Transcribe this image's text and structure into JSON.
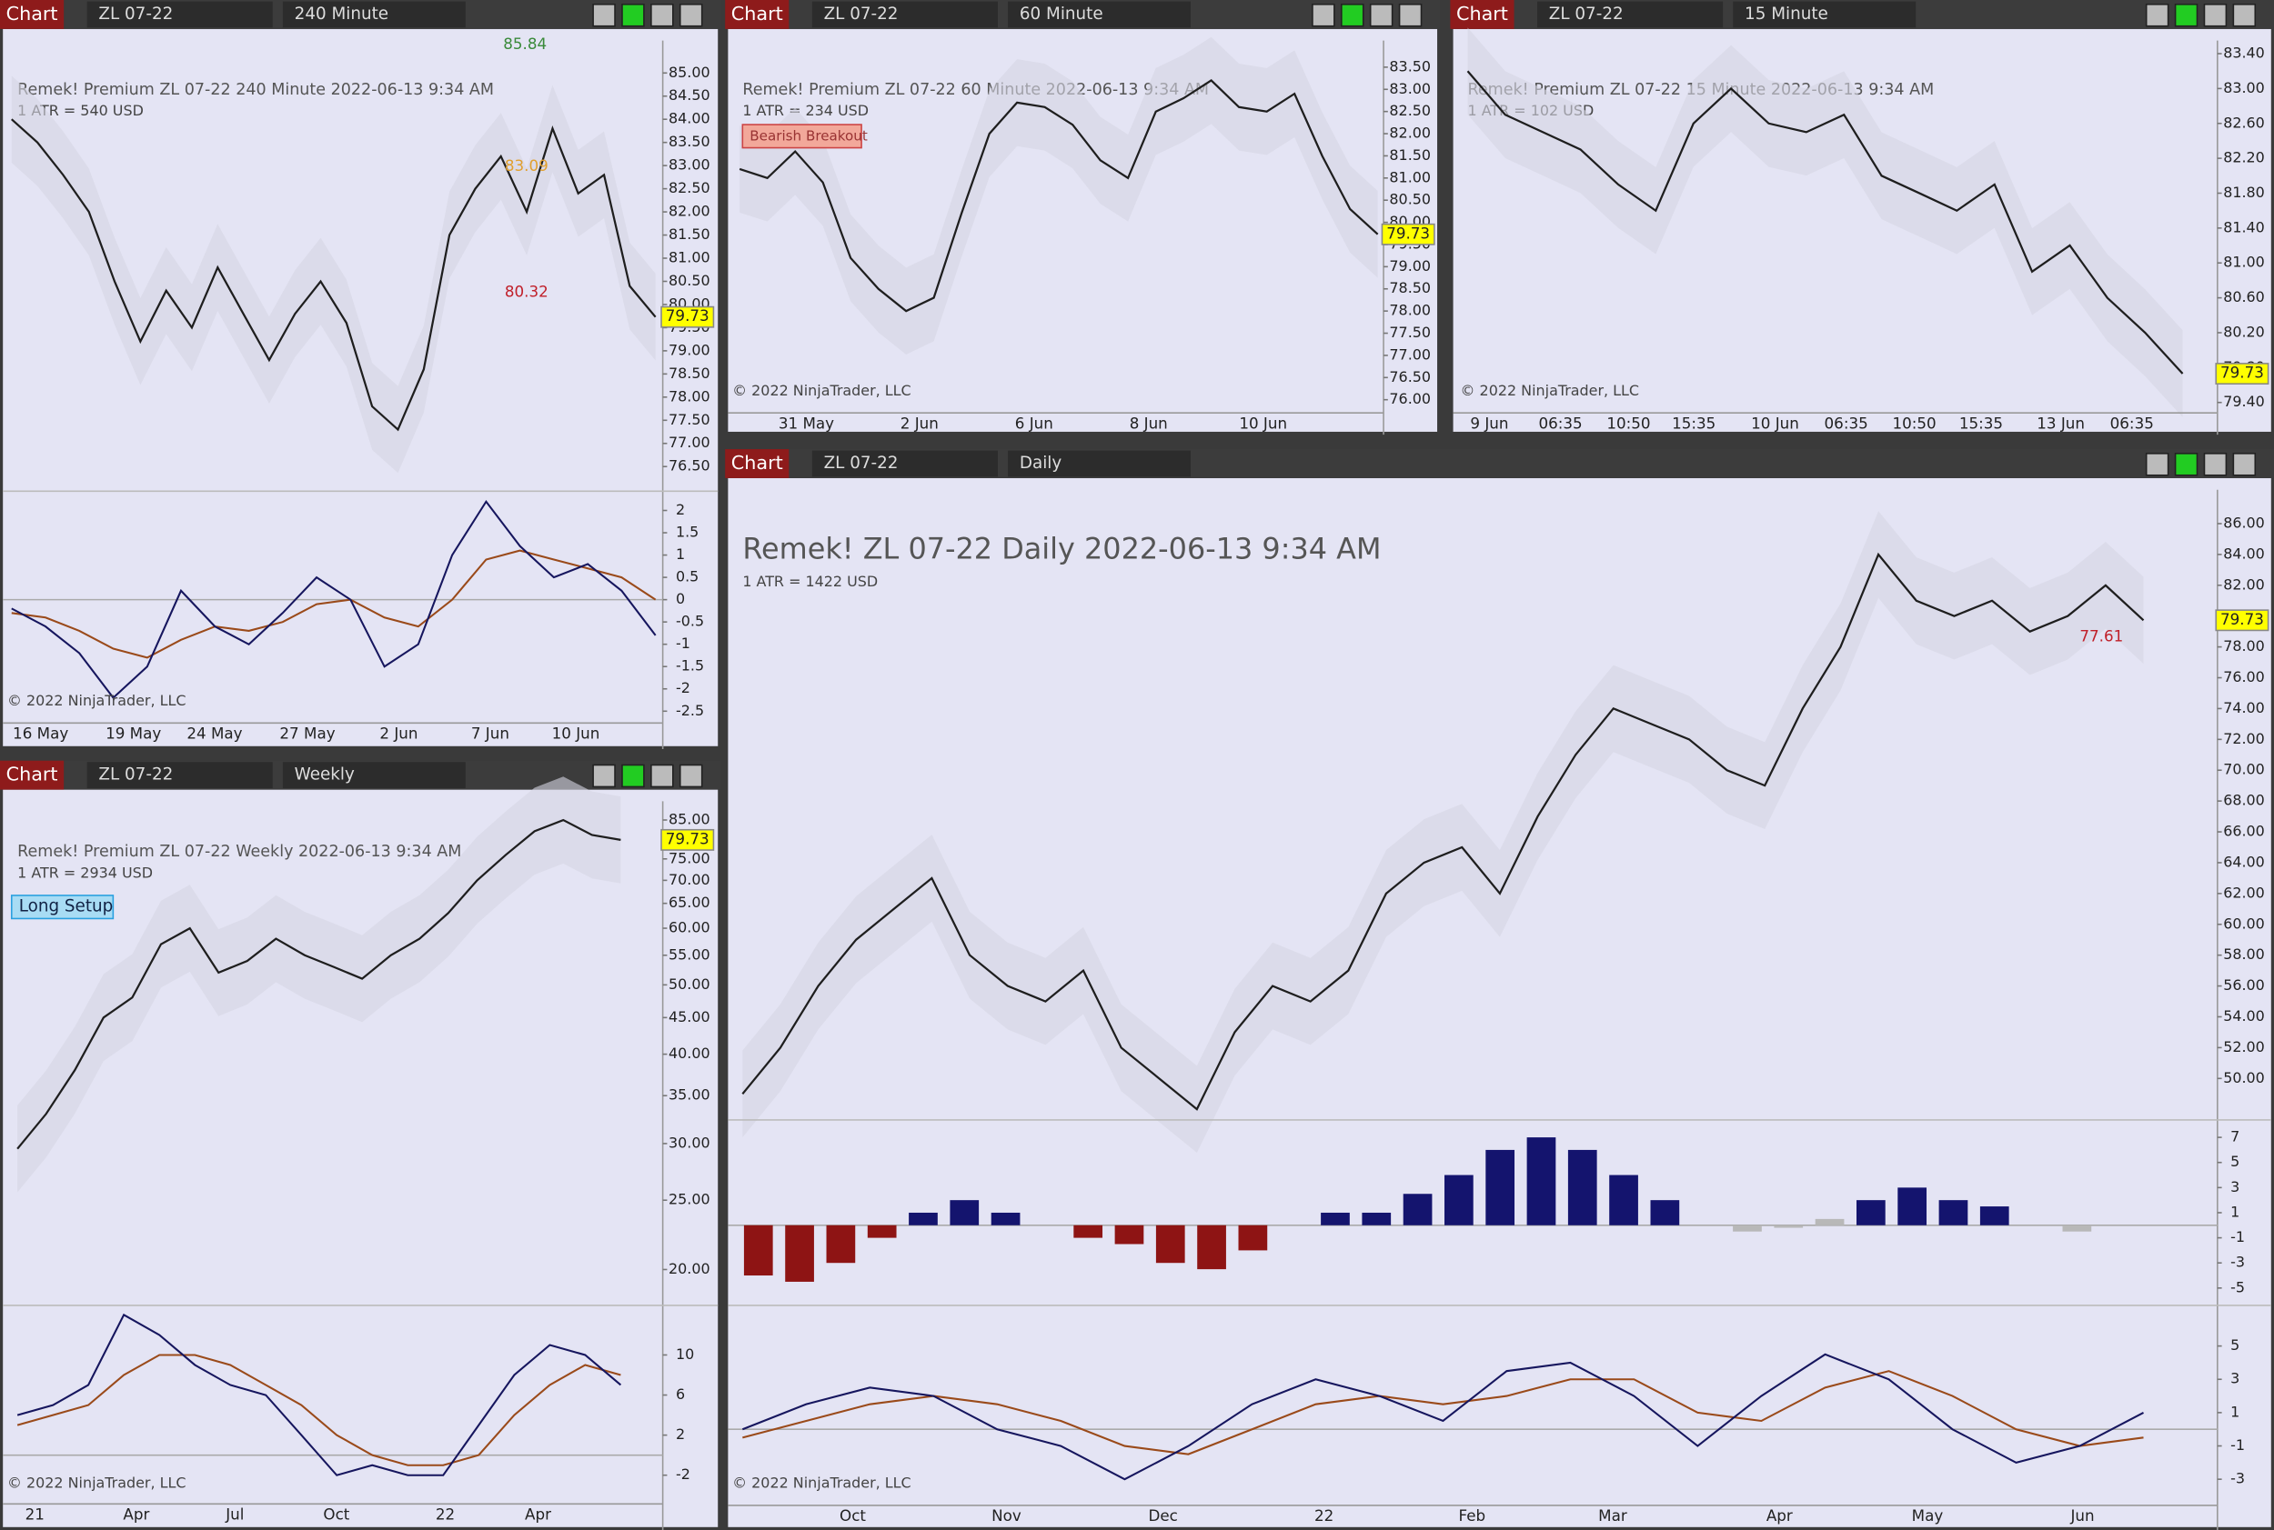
{
  "panels": [
    {
      "button": "Chart",
      "symbol": "ZL 07-22",
      "interval": "240 Minute",
      "title": "Remek!  Premium  ZL 07-22  240 Minute  2022-06-13 9:34 AM",
      "atr": "1 ATR = 540 USD",
      "copyright": "© 2022 NinjaTrader, LLC",
      "price_label": "79.73",
      "annotations": [
        "85.84",
        "83.09",
        "80.32"
      ],
      "ylim": [
        76,
        85.7
      ],
      "log": false,
      "yticks": [
        {
          "value": 85,
          "label": "85.00"
        },
        {
          "value": 84.5,
          "label": "84.50"
        },
        {
          "value": 84,
          "label": "84.00"
        },
        {
          "value": 83.5,
          "label": "83.50"
        },
        {
          "value": 83,
          "label": "83.00"
        },
        {
          "value": 82.5,
          "label": "82.50"
        },
        {
          "value": 82,
          "label": "82.00"
        },
        {
          "value": 81.5,
          "label": "81.50"
        },
        {
          "value": 81,
          "label": "81.00"
        },
        {
          "value": 80.5,
          "label": "80.50"
        },
        {
          "value": 80,
          "label": "80.00"
        },
        {
          "value": 79.5,
          "label": "79.50"
        },
        {
          "value": 79,
          "label": "79.00"
        },
        {
          "value": 78.5,
          "label": "78.50"
        },
        {
          "value": 78,
          "label": "78.00"
        },
        {
          "value": 77.5,
          "label": "77.50"
        },
        {
          "value": 77,
          "label": "77.00"
        },
        {
          "value": 76.5,
          "label": "76.50"
        }
      ],
      "xlabels": [
        "16 May",
        "19 May",
        "24 May",
        "27 May",
        "2 Jun",
        "7 Jun",
        "10 Jun"
      ],
      "closes": [
        84,
        83.5,
        82.8,
        82,
        80.5,
        79.2,
        80.3,
        79.5,
        80.8,
        79.8,
        78.8,
        79.8,
        80.5,
        79.6,
        77.8,
        77.3,
        78.6,
        81.5,
        82.5,
        83.2,
        82,
        83.8,
        82.4,
        82.8,
        80.4,
        79.73
      ],
      "osc": [
        {
          "ylim": [
            -2.7,
            2.4
          ],
          "yticks": [
            2,
            1.5,
            1,
            0.5,
            0,
            -0.5,
            -1,
            -1.5,
            -2,
            -2.5
          ],
          "fast": [
            -0.2,
            -0.6,
            -1.2,
            -2.2,
            -1.5,
            0.2,
            -0.6,
            -1,
            -0.3,
            0.5,
            0,
            -1.5,
            -1,
            1,
            2.2,
            1.2,
            0.5,
            0.8,
            0.2,
            -0.8
          ],
          "slow": [
            -0.3,
            -0.4,
            -0.7,
            -1.1,
            -1.3,
            -0.9,
            -0.6,
            -0.7,
            -0.5,
            -0.1,
            0,
            -0.4,
            -0.6,
            0,
            0.9,
            1.1,
            0.9,
            0.7,
            0.5,
            0
          ]
        }
      ]
    },
    {
      "button": "Chart",
      "symbol": "ZL 07-22",
      "interval": "60 Minute",
      "title": "Remek!  Premium  ZL 07-22  60 Minute  2022-06-13 9:34 AM",
      "atr": "1 ATR = 234 USD",
      "copyright": "© 2022 NinjaTrader, LLC",
      "price_label": "79.73",
      "annotations": [
        "Bearish Breakout"
      ],
      "ylim": [
        75.8,
        84.1
      ],
      "log": false,
      "yticks": [
        {
          "value": 83.5,
          "label": "83.50"
        },
        {
          "value": 83,
          "label": "83.00"
        },
        {
          "value": 82.5,
          "label": "82.50"
        },
        {
          "value": 82,
          "label": "82.00"
        },
        {
          "value": 81.5,
          "label": "81.50"
        },
        {
          "value": 81,
          "label": "81.00"
        },
        {
          "value": 80.5,
          "label": "80.50"
        },
        {
          "value": 80,
          "label": "80.00"
        },
        {
          "value": 79.5,
          "label": "79.50"
        },
        {
          "value": 79,
          "label": "79.00"
        },
        {
          "value": 78.5,
          "label": "78.50"
        },
        {
          "value": 78,
          "label": "78.00"
        },
        {
          "value": 77.5,
          "label": "77.50"
        },
        {
          "value": 77,
          "label": "77.00"
        },
        {
          "value": 76.5,
          "label": "76.50"
        },
        {
          "value": 76,
          "label": "76.00"
        }
      ],
      "xlabels": [
        "31 May",
        "2 Jun",
        "6 Jun",
        "8 Jun",
        "10 Jun"
      ],
      "closes": [
        81.2,
        81,
        81.6,
        80.9,
        79.2,
        78.5,
        78,
        78.3,
        80.2,
        82,
        82.7,
        82.6,
        82.2,
        81.4,
        81,
        82.5,
        82.8,
        83.2,
        82.6,
        82.5,
        82.9,
        81.5,
        80.3,
        79.73
      ]
    },
    {
      "button": "Chart",
      "symbol": "ZL 07-22",
      "interval": "15 Minute",
      "title": "Remek!  Premium  ZL 07-22  15 Minute  2022-06-13 9:34 AM",
      "atr": "1 ATR = 102 USD",
      "copyright": "© 2022 NinjaTrader, LLC",
      "price_label": "79.73",
      "annotations": [],
      "ylim": [
        79.33,
        83.55
      ],
      "log": false,
      "yticks": [
        {
          "value": 83.4,
          "label": "83.40"
        },
        {
          "value": 83,
          "label": "83.00"
        },
        {
          "value": 82.6,
          "label": "82.60"
        },
        {
          "value": 82.2,
          "label": "82.20"
        },
        {
          "value": 81.8,
          "label": "81.80"
        },
        {
          "value": 81.4,
          "label": "81.40"
        },
        {
          "value": 81,
          "label": "81.00"
        },
        {
          "value": 80.6,
          "label": "80.60"
        },
        {
          "value": 80.2,
          "label": "80.20"
        },
        {
          "value": 79.8,
          "label": "79.80"
        },
        {
          "value": 79.4,
          "label": "79.40"
        }
      ],
      "xlabels": [
        "9 Jun",
        "06:35",
        "10:50",
        "15:35",
        "10 Jun",
        "06:35",
        "10:50",
        "15:35",
        "13 Jun",
        "06:35"
      ],
      "closes": [
        83.2,
        82.7,
        82.5,
        82.3,
        81.9,
        81.6,
        82.6,
        83,
        82.6,
        82.5,
        82.7,
        82,
        81.8,
        81.6,
        81.9,
        80.9,
        81.2,
        80.6,
        80.2,
        79.73
      ]
    },
    {
      "button": "Chart",
      "symbol": "ZL 07-22",
      "interval": "Weekly",
      "title": "Remek!  Premium  ZL 07-22  Weekly  2022-06-13 9:34 AM",
      "atr": "1 ATR = 2934 USD",
      "copyright": "© 2022 NinjaTrader, LLC",
      "price_label": "79.73",
      "annotations": [
        "Long Setup"
      ],
      "ylim": [
        17.9,
        90.3
      ],
      "log": true,
      "yticks": [
        {
          "value": 85,
          "label": "85.00"
        },
        {
          "value": 80,
          "label": "80.00"
        },
        {
          "value": 75,
          "label": "75.00"
        },
        {
          "value": 70,
          "label": "70.00"
        },
        {
          "value": 65,
          "label": "65.00"
        },
        {
          "value": 60,
          "label": "60.00"
        },
        {
          "value": 55,
          "label": "55.00"
        },
        {
          "value": 50,
          "label": "50.00"
        },
        {
          "value": 45,
          "label": "45.00"
        },
        {
          "value": 40,
          "label": "40.00"
        },
        {
          "value": 35,
          "label": "35.00"
        },
        {
          "value": 30,
          "label": "30.00"
        },
        {
          "value": 25,
          "label": "25.00"
        },
        {
          "value": 20,
          "label": "20.00"
        }
      ],
      "xlabels": [
        "21",
        "Apr",
        "Jul",
        "Oct",
        "22",
        "Apr"
      ],
      "closes": [
        29.5,
        33,
        38,
        45,
        48,
        57,
        60,
        52,
        54,
        58,
        55,
        53,
        51,
        55,
        58,
        63,
        70,
        76,
        82,
        85,
        81,
        79.73
      ],
      "osc": [
        {
          "ylim": [
            -4,
            14.8
          ],
          "yticks": [
            10,
            6,
            2,
            -2
          ],
          "fast": [
            4,
            5,
            7,
            14,
            12,
            9,
            7,
            6,
            2,
            -2,
            -1,
            -2,
            -2,
            3,
            8,
            11,
            10,
            7
          ],
          "slow": [
            3,
            4,
            5,
            8,
            10,
            10,
            9,
            7,
            5,
            2,
            0,
            -1,
            -1,
            0,
            4,
            7,
            9,
            8
          ]
        }
      ]
    },
    {
      "button": "Chart",
      "symbol": "ZL 07-22",
      "interval": "Daily",
      "title": "Remek!  ZL 07-22  Daily  2022-06-13 9:34 AM",
      "atr": "1 ATR = 1422 USD",
      "copyright": "© 2022 NinjaTrader, LLC",
      "price_label": "79.73",
      "annotations": [
        "77.61"
      ],
      "ylim": [
        47.4,
        88.2
      ],
      "log": false,
      "yticks": [
        {
          "value": 86,
          "label": "86.00"
        },
        {
          "value": 84,
          "label": "84.00"
        },
        {
          "value": 82,
          "label": "82.00"
        },
        {
          "value": 80,
          "label": "80.00"
        },
        {
          "value": 78,
          "label": "78.00"
        },
        {
          "value": 76,
          "label": "76.00"
        },
        {
          "value": 74,
          "label": "74.00"
        },
        {
          "value": 72,
          "label": "72.00"
        },
        {
          "value": 70,
          "label": "70.00"
        },
        {
          "value": 68,
          "label": "68.00"
        },
        {
          "value": 66,
          "label": "66.00"
        },
        {
          "value": 64,
          "label": "64.00"
        },
        {
          "value": 62,
          "label": "62.00"
        },
        {
          "value": 60,
          "label": "60.00"
        },
        {
          "value": 58,
          "label": "58.00"
        },
        {
          "value": 56,
          "label": "56.00"
        },
        {
          "value": 54,
          "label": "54.00"
        },
        {
          "value": 52,
          "label": "52.00"
        },
        {
          "value": 50,
          "label": "50.00"
        }
      ],
      "xlabels": [
        "Oct",
        "Nov",
        "Dec",
        "22",
        "Feb",
        "Mar",
        "Apr",
        "May",
        "Jun"
      ],
      "closes": [
        49,
        52,
        56,
        59,
        61,
        63,
        58,
        56,
        55,
        57,
        52,
        50,
        48,
        53,
        56,
        55,
        57,
        62,
        64,
        65,
        62,
        67,
        71,
        74,
        73,
        72,
        70,
        69,
        74,
        78,
        84,
        81,
        80,
        81,
        79,
        80,
        82,
        79.73
      ],
      "osc": [
        {
          "ylim": [
            -6.27,
            8.27
          ],
          "yticks": [
            7,
            5,
            3,
            1,
            -1,
            -3,
            -5
          ],
          "hist": [
            -4,
            -4.5,
            -3,
            -1,
            1,
            2,
            1,
            0,
            -1,
            -1.5,
            -3,
            -3.5,
            -2,
            0,
            1,
            1,
            2.5,
            4,
            6,
            7,
            6,
            4,
            2,
            0,
            -0.5,
            -0.2,
            0.5,
            2,
            3,
            2,
            1.5,
            0,
            -0.5,
            0
          ]
        },
        {
          "ylim": [
            -3.96,
            7.35
          ],
          "yticks": [
            5,
            3,
            1,
            -1,
            -3
          ],
          "fast": [
            0,
            1.5,
            2.5,
            2,
            0,
            -1,
            -3,
            -1,
            1.5,
            3,
            2,
            0.5,
            3.5,
            4,
            2,
            -1,
            2,
            4.5,
            3,
            0,
            -2,
            -1,
            1
          ],
          "slow": [
            -0.5,
            0.5,
            1.5,
            2,
            1.5,
            0.5,
            -1,
            -1.5,
            0,
            1.5,
            2,
            1.5,
            2,
            3,
            3,
            1,
            0.5,
            2.5,
            3.5,
            2,
            0,
            -1,
            -0.5
          ]
        }
      ]
    }
  ]
}
